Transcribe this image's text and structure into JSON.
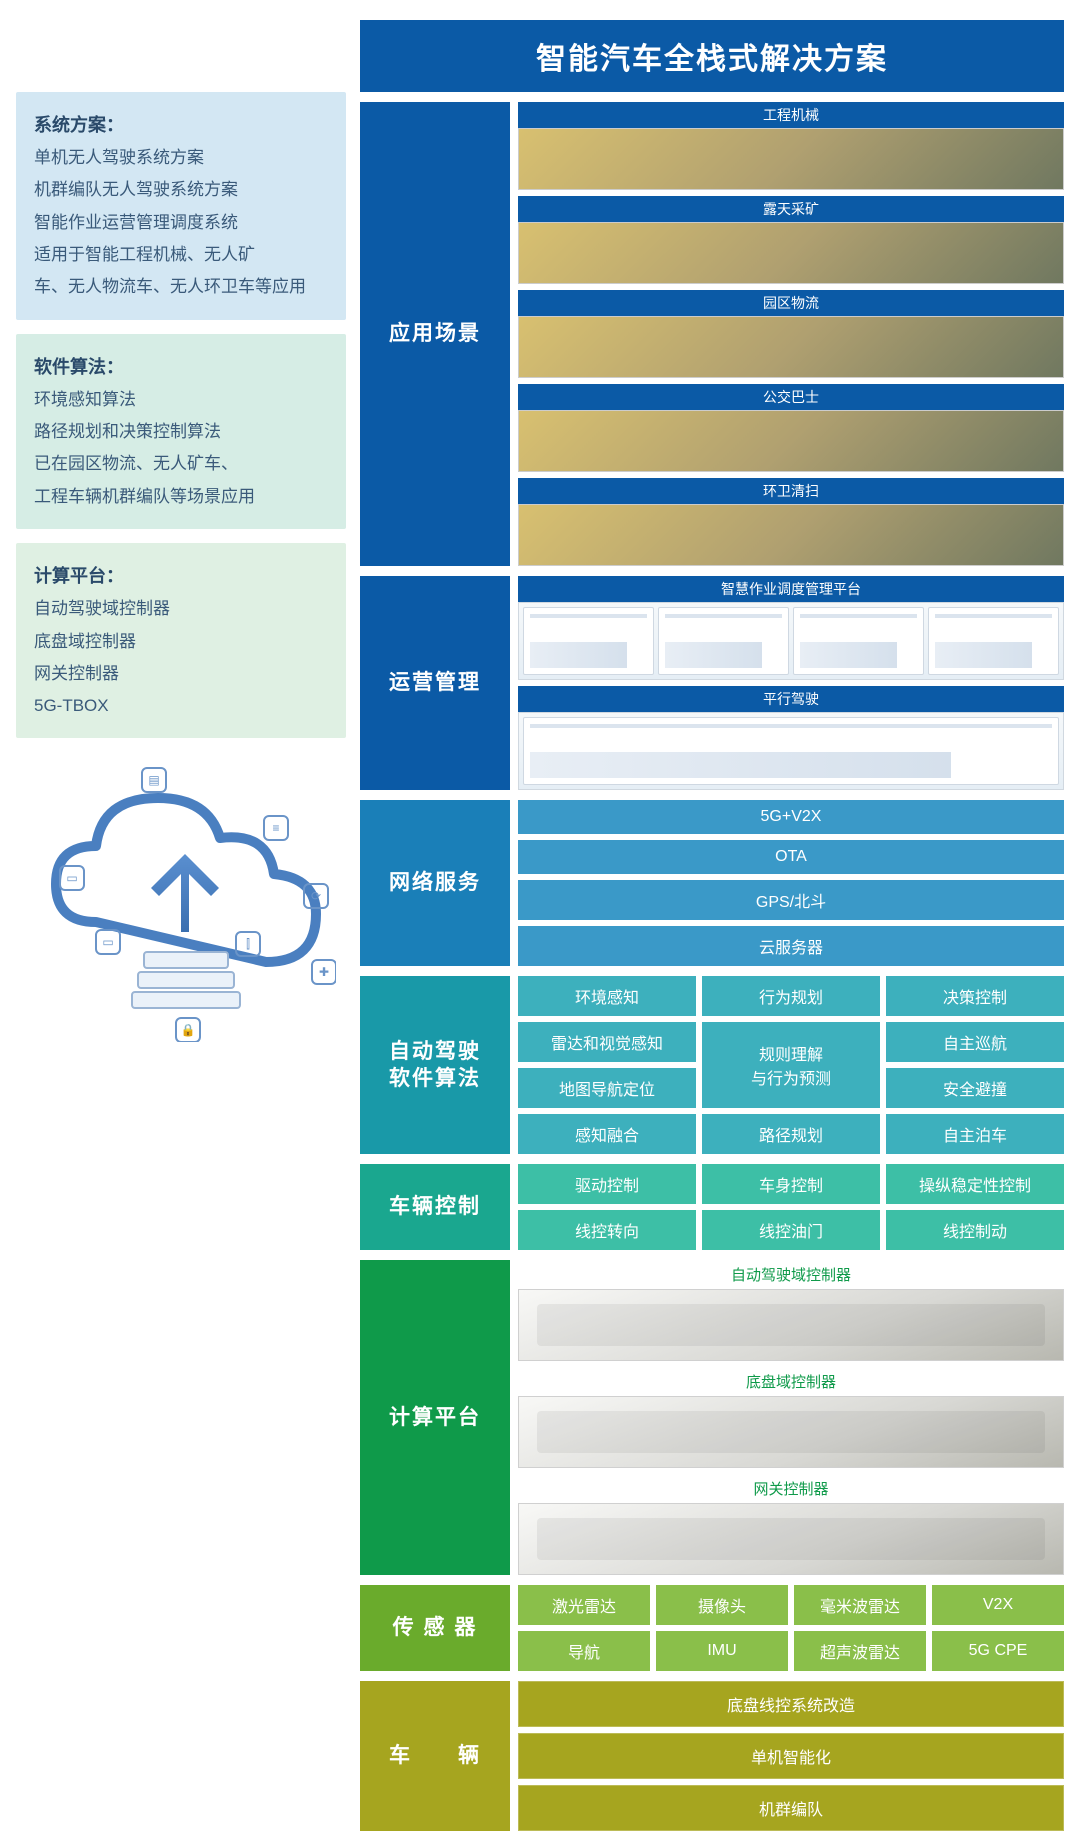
{
  "colors": {
    "banner": "#0b5aa6",
    "row_scenario": "#0b5aa6",
    "row_ops": "#0b5aa6",
    "row_network": "#1a7fb8",
    "row_algo": "#1999a8",
    "row_vehiclectl": "#1aa78f",
    "row_platform": "#0f9a4a",
    "row_sensor": "#6aab2c",
    "row_vehicle": "#a6a51f",
    "chip_network": "#3a99c8",
    "chip_algo": "#3db0bd",
    "chip_vehiclectl": "#3dbfa6",
    "chip_sensor": "#8abf4a",
    "left_card1": "#d3e7f3",
    "left_card2": "#d6ede5",
    "left_card3": "#dff0e3",
    "left_text": "#3a5a7a"
  },
  "banner": "智能汽车全栈式解决方案",
  "left": {
    "card1": {
      "title": "系统方案：",
      "lines": [
        "单机无人驾驶系统方案",
        "机群编队无人驾驶系统方案",
        "智能作业运营管理调度系统",
        "适用于智能工程机械、无人矿",
        "车、无人物流车、无人环卫车等应用"
      ]
    },
    "card2": {
      "title": "软件算法：",
      "lines": [
        "环境感知算法",
        "路径规划和决策控制算法",
        "已在园区物流、无人矿车、",
        "工程车辆机群编队等场景应用"
      ]
    },
    "card3": {
      "title": "计算平台：",
      "lines": [
        "自动驾驶域控制器",
        "底盘域控制器",
        "网关控制器",
        "5G-TBOX"
      ]
    }
  },
  "rows": {
    "scenario": {
      "label": "应用场景",
      "items": [
        "工程机械",
        "露天采矿",
        "园区物流",
        "公交巴士",
        "环卫清扫"
      ]
    },
    "ops": {
      "label": "运营管理",
      "items": [
        {
          "label": "智慧作业调度管理平台",
          "span": 4
        },
        {
          "label": "平行驾驶",
          "span": 1
        }
      ]
    },
    "network": {
      "label": "网络服务",
      "chips": [
        "5G+V2X",
        "OTA",
        "GPS/北斗",
        "云服务器"
      ]
    },
    "algo": {
      "label": "自动驾驶\n软件算法",
      "grid": [
        [
          "环境感知",
          "行为规划",
          "决策控制"
        ],
        [
          "雷达和视觉感知",
          "规则理解\n与行为预测",
          "自主巡航"
        ],
        [
          "地图导航定位",
          "__merge_up__",
          "安全避撞"
        ],
        [
          "感知融合",
          "路径规划",
          "自主泊车"
        ]
      ]
    },
    "vehiclectl": {
      "label": "车辆控制",
      "grid": [
        [
          "驱动控制",
          "车身控制",
          "操纵稳定性控制"
        ],
        [
          "线控转向",
          "线控油门",
          "线控制动"
        ]
      ]
    },
    "platform": {
      "label": "计算平台",
      "items": [
        "自动驾驶域控制器",
        "底盘域控制器",
        "网关控制器"
      ],
      "label_color": "#0f9a4a"
    },
    "sensor": {
      "label": "传 感 器",
      "grid": [
        [
          "激光雷达",
          "摄像头",
          "毫米波雷达",
          "V2X"
        ],
        [
          "导航",
          "IMU",
          "超声波雷达",
          "5G CPE"
        ]
      ]
    },
    "vehicle": {
      "label": "车　　辆",
      "chips": [
        "底盘线控系统改造",
        "单机智能化",
        "机群编队"
      ]
    }
  }
}
